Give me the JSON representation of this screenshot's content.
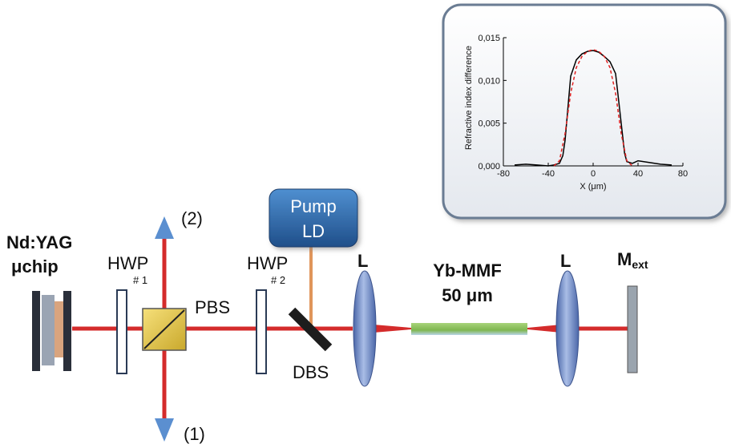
{
  "labels": {
    "source_line1": "Nd:YAG",
    "source_line2": "μchip",
    "hwp1": "HWP",
    "hwp1_num": "# 1",
    "hwp2": "HWP",
    "hwp2_num": "# 2",
    "pbs": "PBS",
    "dbs": "DBS",
    "pump_line1": "Pump",
    "pump_line2": "LD",
    "lens1": "L",
    "lens2": "L",
    "fiber_line1": "Yb-MMF",
    "fiber_line2": "50 μm",
    "mirror_main": "M",
    "mirror_sub": "ext",
    "port_top": "(2)",
    "port_bottom": "(1)"
  },
  "colors": {
    "beam": "#d42b2b",
    "pump_beam": "#e0955a",
    "pump_box": "#2e6aa8",
    "lens": "#6e8bc7",
    "fiber": "#8dc060",
    "pbs": "#e8c94a",
    "arrow": "#5b8fd0",
    "mirror": "#9aa4ae"
  },
  "chart_data": {
    "type": "line",
    "xlabel": "X (μm)",
    "ylabel": "Refractive index difference",
    "xlim": [
      -80,
      80
    ],
    "ylim": [
      0,
      0.015
    ],
    "xticks": [
      "-80",
      "-40",
      "0",
      "40",
      "80"
    ],
    "yticks": [
      "0,000",
      "0,005",
      "0,010",
      "0,015"
    ],
    "series": [
      {
        "style": "solid",
        "color": "#000000",
        "x": [
          -70,
          -60,
          -50,
          -40,
          -35,
          -30,
          -27,
          -25,
          -22,
          -20,
          -15,
          -10,
          -5,
          0,
          5,
          10,
          15,
          20,
          22,
          25,
          28,
          30,
          35,
          40,
          50,
          60,
          70
        ],
        "y": [
          0.0001,
          0.0002,
          0.0001,
          0.0,
          0.0001,
          0.0003,
          0.0012,
          0.003,
          0.0075,
          0.0105,
          0.0124,
          0.0131,
          0.0134,
          0.0135,
          0.0133,
          0.0128,
          0.0122,
          0.0108,
          0.0085,
          0.005,
          0.0015,
          0.0005,
          0.0003,
          0.0006,
          0.0004,
          0.0002,
          0.0001
        ]
      },
      {
        "style": "dashed",
        "color": "#e02020",
        "x": [
          -35,
          -30,
          -25,
          -20,
          -15,
          -10,
          -5,
          0,
          5,
          10,
          15,
          20,
          25,
          30,
          35
        ],
        "y": [
          0.0,
          0.0006,
          0.0038,
          0.0085,
          0.0115,
          0.0128,
          0.0134,
          0.0136,
          0.0134,
          0.0128,
          0.0115,
          0.0085,
          0.0038,
          0.0006,
          0.0
        ]
      }
    ]
  }
}
